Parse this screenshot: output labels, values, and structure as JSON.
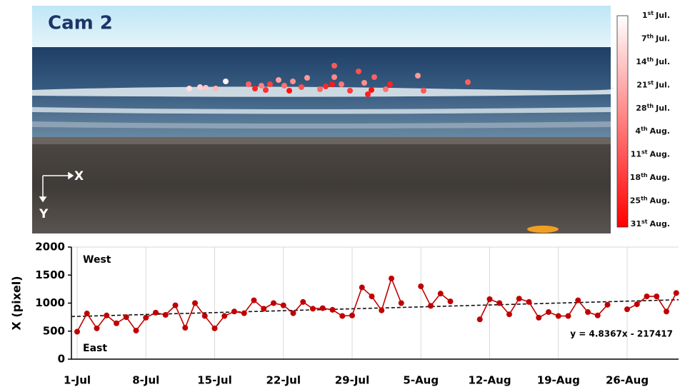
{
  "photo": {
    "title": "Cam 2",
    "x_axis": "X",
    "y_axis": "Y"
  },
  "colorbar": {
    "colors": [
      "#ffffff",
      "#ff0000"
    ],
    "labels": [
      {
        "day": "1",
        "suffix": "st",
        "month": "Jul."
      },
      {
        "day": "7",
        "suffix": "th",
        "month": "Jul."
      },
      {
        "day": "14",
        "suffix": "th",
        "month": "Jul."
      },
      {
        "day": "21",
        "suffix": "st",
        "month": "Jul."
      },
      {
        "day": "28",
        "suffix": "th",
        "month": "Jul."
      },
      {
        "day": "4",
        "suffix": "th",
        "month": "Aug."
      },
      {
        "day": "11",
        "suffix": "st",
        "month": "Aug."
      },
      {
        "day": "18",
        "suffix": "th",
        "month": "Aug."
      },
      {
        "day": "25",
        "suffix": "th",
        "month": "Aug."
      },
      {
        "day": "31",
        "suffix": "st",
        "month": "Aug."
      }
    ]
  },
  "chart_data": {
    "type": "line",
    "ylabel": "X (pixel)",
    "annotations": [
      "West",
      "East"
    ],
    "categories": [
      "1-Jul",
      null,
      null,
      null,
      null,
      null,
      null,
      "8-Jul",
      null,
      null,
      null,
      null,
      null,
      null,
      "15-Jul",
      null,
      null,
      null,
      null,
      null,
      null,
      "22-Jul",
      null,
      null,
      null,
      null,
      null,
      null,
      "29-Jul",
      null,
      null,
      null,
      null,
      null,
      null,
      "5-Aug",
      null,
      null,
      null,
      null,
      null,
      null,
      "12-Aug",
      null,
      null,
      null,
      null,
      null,
      null,
      "19-Aug",
      null,
      null,
      null,
      null,
      null,
      null,
      "26-Aug",
      null,
      null,
      null,
      null,
      null
    ],
    "series": [
      {
        "color": "#c00000",
        "values": [
          490,
          815,
          550,
          780,
          640,
          750,
          510,
          740,
          830,
          790,
          960,
          560,
          1000,
          770,
          550,
          770,
          850,
          820,
          1050,
          900,
          1000,
          960,
          820,
          1020,
          900,
          910,
          880,
          770,
          780,
          1280,
          1120,
          870,
          1440,
          1000,
          null,
          1300,
          950,
          1170,
          1030,
          null,
          null,
          710,
          1070,
          1000,
          800,
          1080,
          1020,
          740,
          840,
          770,
          770,
          1050,
          840,
          780,
          970,
          null,
          890,
          980,
          1120,
          1120,
          850,
          1180
        ]
      }
    ],
    "trendline": {
      "label": "y = 4.8367x - 217417",
      "values": [
        760,
        1060
      ]
    },
    "ylim": [
      0,
      2000
    ],
    "yticks": [
      0,
      500,
      1000,
      1500,
      2000
    ],
    "grid": true
  }
}
